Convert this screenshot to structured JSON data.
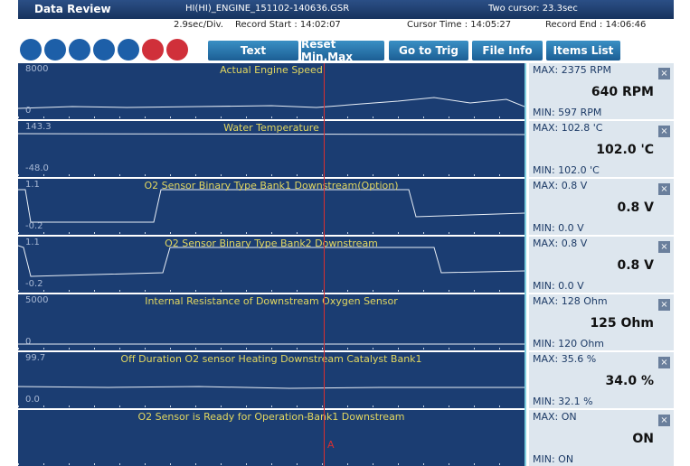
{
  "header": {
    "title": "Data Review",
    "file": "HI(HI)_ENGINE_151102-140636.GSR",
    "cursor_info": "Two cursor: 23.3sec"
  },
  "infobar": {
    "division": "2.9sec/Div.",
    "record_start": "Record Start : 14:02:07",
    "cursor_time": "Cursor Time : 14:05:27",
    "record_end": "Record End : 14:06:46"
  },
  "toolbar": {
    "buttons": [
      "Text",
      "Reset Min.Max",
      "Go to Trig",
      "File Info",
      "Items List"
    ]
  },
  "cursor_label": "A",
  "panels": [
    {
      "title": "Actual Engine Speed",
      "axis_max": "8000",
      "axis_min": "0",
      "max": "MAX:  2375 RPM",
      "value": "640 RPM",
      "min": "MIN:  597 RPM"
    },
    {
      "title": "Water Temperature",
      "axis_max": "143.3",
      "axis_min": "-48.0",
      "max": "MAX: 102.8 'C",
      "value": "102.0 'C",
      "min": "MIN: 102.0 'C"
    },
    {
      "title": "O2 Sensor Binary Type Bank1 Downstream(Option)",
      "axis_max": "1.1",
      "axis_min": "-0.2",
      "max": "MAX:   0.8 V",
      "value": "0.8 V",
      "min": "MIN:   0.0 V"
    },
    {
      "title": "O2 Sensor Binary Type Bank2 Downstream",
      "axis_max": "1.1",
      "axis_min": "-0.2",
      "max": "MAX:   0.8 V",
      "value": "0.8 V",
      "min": "MIN:   0.0 V"
    },
    {
      "title": "Internal Resistance of Downstream Oxygen Sensor",
      "axis_max": "5000",
      "axis_min": "0",
      "max": "MAX:   128 Ohm",
      "value": "125 Ohm",
      "min": "MIN:   120 Ohm"
    },
    {
      "title": "Off Duration O2 sensor Heating Downstream Catalyst Bank1",
      "axis_max": "99.7",
      "axis_min": "0.0",
      "max": "MAX:  35.6 %",
      "value": "34.0 %",
      "min": "MIN:  32.1 %"
    },
    {
      "title": "O2 Sensor is Ready for Operation-Bank1 Downstream",
      "max": "MAX: ON",
      "value": "ON",
      "min": "MIN: ON"
    }
  ]
}
